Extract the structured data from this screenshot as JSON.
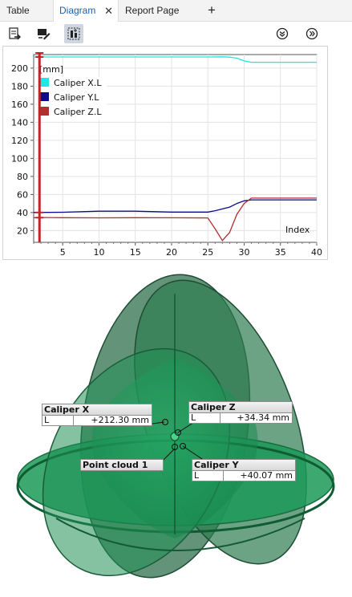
{
  "tabs": [
    {
      "label": "Table",
      "active": false
    },
    {
      "label": "Diagram",
      "active": true,
      "close_glyph": "✕"
    },
    {
      "label": "Report Page",
      "active": false
    }
  ],
  "add_tab_glyph": "+",
  "toolbar": {
    "left_icons": [
      "export-icon",
      "edit-icon",
      "chart-select-icon"
    ],
    "right_icons": [
      "expand-down-icon",
      "expand-right-icon"
    ]
  },
  "colors": {
    "accent": "#1a5fb4",
    "series_x": "#22e5e5",
    "series_y": "#0a0a8a",
    "series_z": "#b03030",
    "cursor": "#c0252a",
    "scene_green": "#1e9a5a"
  },
  "chart_data": {
    "type": "line",
    "unit_label": "[mm]",
    "xlabel": "Index",
    "xlim": [
      1,
      40
    ],
    "ylim": [
      7,
      215
    ],
    "x_ticks": [
      5,
      10,
      15,
      20,
      25,
      30,
      35,
      40
    ],
    "y_ticks": [
      20,
      40,
      60,
      80,
      100,
      120,
      140,
      160,
      180,
      200
    ],
    "grid": true,
    "legend_position": "top-left",
    "cursor_x": 1.8,
    "series": [
      {
        "name": "Caliper X.L",
        "x": [
          1,
          5,
          10,
          15,
          20,
          25,
          27,
          28,
          29,
          30,
          31,
          35,
          40
        ],
        "y": [
          212.3,
          212.3,
          212.3,
          212.3,
          212.3,
          212.3,
          212.5,
          212.2,
          211,
          208,
          206.5,
          206.5,
          206.5
        ]
      },
      {
        "name": "Caliper Y.L",
        "x": [
          1,
          5,
          10,
          15,
          20,
          25,
          26,
          27,
          28,
          29,
          30,
          31,
          35,
          40
        ],
        "y": [
          40.1,
          40.3,
          41.5,
          41.5,
          40.5,
          40.5,
          42,
          44,
          46,
          50,
          53,
          54,
          54,
          54
        ]
      },
      {
        "name": "Caliper Z.L",
        "x": [
          1,
          3,
          5,
          10,
          15,
          20,
          25,
          26,
          27,
          28,
          29,
          30,
          31,
          35,
          40
        ],
        "y": [
          34.3,
          34.5,
          34.3,
          34.1,
          34.3,
          34.2,
          34,
          22,
          9,
          18,
          38,
          50,
          56,
          56,
          56
        ]
      }
    ]
  },
  "scene": {
    "labels": [
      {
        "id": "caliper-x",
        "title": "Caliper X",
        "key": "L",
        "value": "+212.30 mm"
      },
      {
        "id": "caliper-z",
        "title": "Caliper Z",
        "key": "L",
        "value": "+34.34 mm"
      },
      {
        "id": "point-cloud",
        "title": "Point cloud 1"
      },
      {
        "id": "caliper-y",
        "title": "Caliper Y",
        "key": "L",
        "value": "+40.07 mm"
      }
    ]
  }
}
